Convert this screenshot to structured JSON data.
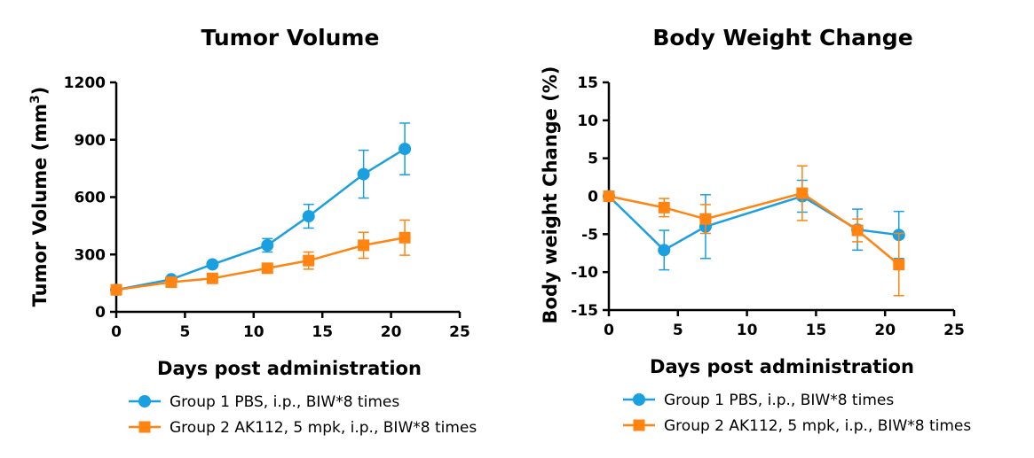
{
  "colors": {
    "group1": "#1a9fe0",
    "group2": "#ff8412"
  },
  "legend": [
    {
      "label": "Group 1 PBS, i.p., BIW*8 times",
      "color": "#1a9fe0",
      "marker": "circle"
    },
    {
      "label": "Group 2 AK112, 5 mpk, i.p., BIW*8 times",
      "color": "#ff8412",
      "marker": "square"
    }
  ],
  "chart_data": [
    {
      "type": "line",
      "title": "Tumor Volume",
      "xlabel": "Days post administration",
      "ylabel": "Tumor Volume (mm",
      "ylabel_sup": "3",
      "ylabel_close": ")",
      "xlim": [
        0,
        25
      ],
      "ylim": [
        0,
        1200
      ],
      "xticks": [
        0,
        5,
        10,
        15,
        20,
        25
      ],
      "yticks": [
        0,
        300,
        600,
        900,
        1200
      ],
      "series": [
        {
          "name": "Group 1 PBS, i.p., BIW*8 times",
          "color": "#1a9fe0",
          "marker": "circle",
          "x": [
            0,
            4,
            7,
            11,
            14,
            18,
            21
          ],
          "y": [
            115,
            170,
            248,
            348,
            500,
            720,
            852
          ],
          "err": [
            8,
            12,
            15,
            35,
            62,
            125,
            135
          ]
        },
        {
          "name": "Group 2 AK112, 5 mpk, i.p., BIW*8 times",
          "color": "#ff8412",
          "marker": "square",
          "x": [
            0,
            4,
            7,
            11,
            14,
            18,
            21
          ],
          "y": [
            115,
            155,
            175,
            228,
            268,
            348,
            388
          ],
          "err": [
            8,
            10,
            12,
            20,
            45,
            68,
            92
          ]
        }
      ]
    },
    {
      "type": "line",
      "title": "Body Weight Change",
      "xlabel": "Days post administration",
      "ylabel": "Body weight Change (%)",
      "xlim": [
        0,
        25
      ],
      "ylim": [
        -15,
        15
      ],
      "xticks": [
        0,
        5,
        10,
        15,
        20,
        25
      ],
      "yticks": [
        -15,
        -10,
        -5,
        0,
        5,
        10,
        15
      ],
      "series": [
        {
          "name": "Group 1 PBS, i.p., BIW*8 times",
          "color": "#1a9fe0",
          "marker": "circle",
          "x": [
            0,
            4,
            7,
            14,
            18,
            21
          ],
          "y": [
            0,
            -7.1,
            -4.0,
            0,
            -4.4,
            -5.1
          ],
          "err": [
            0.2,
            2.6,
            4.2,
            2.1,
            2.7,
            3.1
          ]
        },
        {
          "name": "Group 2 AK112, 5 mpk, i.p., BIW*8 times",
          "color": "#ff8412",
          "marker": "square",
          "x": [
            0,
            4,
            7,
            14,
            18,
            21
          ],
          "y": [
            0,
            -1.5,
            -3.0,
            0.4,
            -4.5,
            -9.0
          ],
          "err": [
            0.2,
            1.2,
            1.9,
            3.6,
            1.5,
            4.1
          ]
        }
      ]
    }
  ]
}
